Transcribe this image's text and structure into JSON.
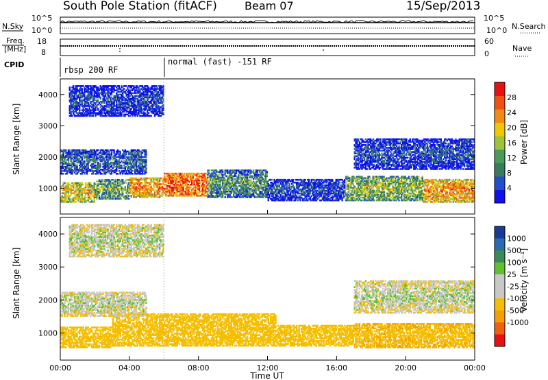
{
  "header": {
    "title": "South Pole Station (fitACF)",
    "beam": "Beam 07",
    "date": "15/Sep/2013"
  },
  "summary_panels": {
    "nsky_label": "N.Sky",
    "nsky_ticks": [
      "10^5",
      "10^0"
    ],
    "nsearch_label": "N.Search",
    "nsearch_ticks": [
      "10^5",
      "10^0"
    ],
    "freq_label_1": "Freq.",
    "freq_label_2": "[MHz]",
    "freq_ticks": [
      "18",
      "8"
    ],
    "nave_label": "Nave",
    "nave_ticks": [
      "60",
      "0"
    ],
    "cpid_label": "CPID",
    "cpid_segments": [
      {
        "label": "rbsp 200 RF",
        "start_hour": 0,
        "end_hour": 6
      },
      {
        "label": "normal (fast) -151 RF",
        "start_hour": 6,
        "end_hour": 24
      }
    ]
  },
  "colors": {
    "power": [
      "#1010ee",
      "#2250c8",
      "#3a7a5e",
      "#4a9a5a",
      "#9ec23a",
      "#f0c800",
      "#f58a10",
      "#f05010",
      "#e81010"
    ],
    "velocity": [
      "#e81010",
      "#f06010",
      "#f3a000",
      "#f5be00",
      "#c8c8c8",
      "#c8c8c8",
      "#60c030",
      "#3a8a5a",
      "#2a6ab0",
      "#1a3a9a"
    ]
  },
  "chart_data": [
    {
      "type": "heatmap",
      "name": "power",
      "ylabel": "Slant Range [km]",
      "xlabel": "",
      "ylim": [
        180,
        4500
      ],
      "xlim": [
        0,
        24
      ],
      "yticks": [
        1000,
        2000,
        3000,
        4000
      ],
      "colorbar": {
        "label": "Power [dB]",
        "ticks": [
          4,
          8,
          12,
          16,
          20,
          24,
          28
        ],
        "range": [
          0,
          32
        ]
      },
      "regions": [
        {
          "t0": 0.0,
          "t1": 2.0,
          "r0": 550,
          "r1": 1200,
          "value": 20
        },
        {
          "t0": 2.0,
          "t1": 4.0,
          "r0": 650,
          "r1": 1300,
          "value": 14
        },
        {
          "t0": 4.0,
          "t1": 6.0,
          "r0": 700,
          "r1": 1350,
          "value": 24
        },
        {
          "t0": 6.0,
          "t1": 8.5,
          "r0": 750,
          "r1": 1500,
          "value": 28
        },
        {
          "t0": 8.5,
          "t1": 12.0,
          "r0": 700,
          "r1": 1600,
          "value": 12
        },
        {
          "t0": 12.0,
          "t1": 16.5,
          "r0": 600,
          "r1": 1300,
          "value": 6
        },
        {
          "t0": 16.5,
          "t1": 21.0,
          "r0": 600,
          "r1": 1400,
          "value": 16
        },
        {
          "t0": 21.0,
          "t1": 24.0,
          "r0": 550,
          "r1": 1300,
          "value": 24
        },
        {
          "t0": 0.0,
          "t1": 5.0,
          "r0": 1450,
          "r1": 2250,
          "value": 8
        },
        {
          "t0": 17.0,
          "t1": 24.0,
          "r0": 1600,
          "r1": 2600,
          "value": 6
        },
        {
          "t0": 0.5,
          "t1": 6.0,
          "r0": 3300,
          "r1": 4300,
          "value": 5
        }
      ]
    },
    {
      "type": "heatmap",
      "name": "velocity",
      "ylabel": "Slant Range [km]",
      "xlabel": "Time UT",
      "ylim": [
        180,
        4500
      ],
      "xlim": [
        0,
        24
      ],
      "yticks": [
        1000,
        2000,
        3000,
        4000
      ],
      "xticks": [
        "00:00",
        "04:00",
        "08:00",
        "12:00",
        "16:00",
        "20:00",
        "00:00"
      ],
      "colorbar": {
        "label": "Velocity [m s⁻¹]",
        "ticks": [
          "1000",
          "500",
          "100",
          "25",
          "-25",
          "-100",
          "-500",
          "-1000"
        ]
      },
      "regions": [
        {
          "t0": 0.0,
          "t1": 3.0,
          "r0": 550,
          "r1": 1200,
          "value": -200
        },
        {
          "t0": 3.0,
          "t1": 12.5,
          "r0": 600,
          "r1": 1600,
          "value": -300
        },
        {
          "t0": 12.5,
          "t1": 17.0,
          "r0": 600,
          "r1": 1250,
          "value": -200
        },
        {
          "t0": 17.0,
          "t1": 24.0,
          "r0": 550,
          "r1": 1300,
          "value": -400
        },
        {
          "t0": 0.0,
          "t1": 5.0,
          "r0": 1500,
          "r1": 2250,
          "value": 0
        },
        {
          "t0": 17.0,
          "t1": 24.0,
          "r0": 1600,
          "r1": 2600,
          "value": 0
        },
        {
          "t0": 0.5,
          "t1": 6.0,
          "r0": 3300,
          "r1": 4300,
          "value": 0
        }
      ]
    }
  ]
}
